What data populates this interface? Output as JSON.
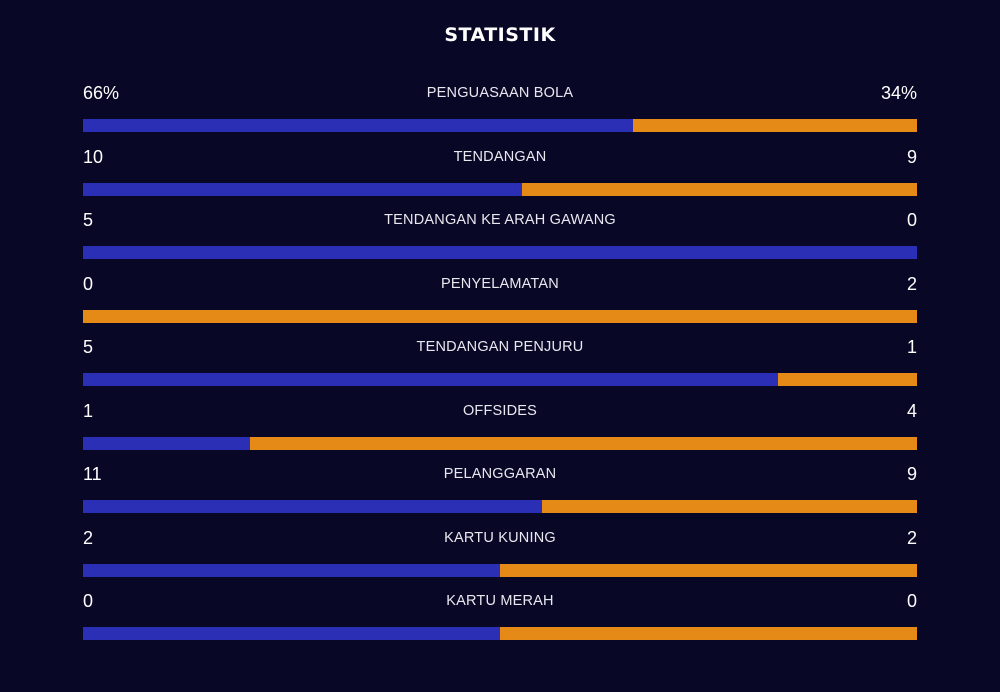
{
  "title": "STATISTIK",
  "colors": {
    "background": "#080826",
    "home": "#2b2fb5",
    "away": "#e58a17"
  },
  "stats": [
    {
      "label": "PENGUASAAN BOLA",
      "left": "66%",
      "right": "34%",
      "home_share": 0.66
    },
    {
      "label": "TENDANGAN",
      "left": "10",
      "right": "9",
      "home_share": 0.526
    },
    {
      "label": "TENDANGAN KE ARAH GAWANG",
      "left": "5",
      "right": "0",
      "home_share": 1.0
    },
    {
      "label": "PENYELAMATAN",
      "left": "0",
      "right": "2",
      "home_share": 0.0
    },
    {
      "label": "TENDANGAN PENJURU",
      "left": "5",
      "right": "1",
      "home_share": 0.833
    },
    {
      "label": "OFFSIDES",
      "left": "1",
      "right": "4",
      "home_share": 0.2
    },
    {
      "label": "PELANGGARAN",
      "left": "11",
      "right": "9",
      "home_share": 0.55
    },
    {
      "label": "KARTU KUNING",
      "left": "2",
      "right": "2",
      "home_share": 0.5
    },
    {
      "label": "KARTU MERAH",
      "left": "0",
      "right": "0",
      "home_share": 0.5
    }
  ]
}
